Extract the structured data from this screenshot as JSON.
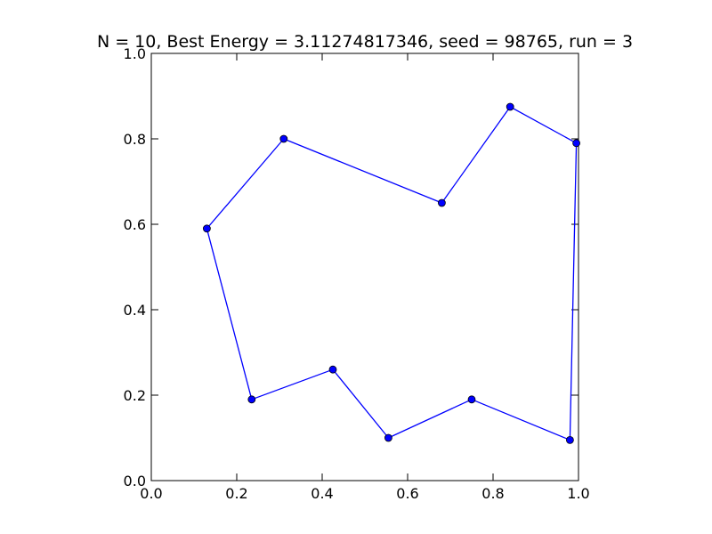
{
  "chart_data": {
    "type": "line",
    "title": "N = 10, Best Energy = 3.11274817346, seed = 98765, run = 3",
    "xlabel": "",
    "ylabel": "",
    "xlim": [
      0.0,
      1.0
    ],
    "ylim": [
      0.0,
      1.0
    ],
    "x_ticks": [
      "0.0",
      "0.2",
      "0.4",
      "0.6",
      "0.8",
      "1.0"
    ],
    "y_ticks": [
      "0.0",
      "0.2",
      "0.4",
      "0.6",
      "0.8",
      "1.0"
    ],
    "grid": false,
    "series": [
      {
        "color": "#0000ff",
        "marker": "circle",
        "closed": true,
        "points": [
          {
            "x": 0.13,
            "y": 0.59
          },
          {
            "x": 0.31,
            "y": 0.8
          },
          {
            "x": 0.68,
            "y": 0.65
          },
          {
            "x": 0.84,
            "y": 0.875
          },
          {
            "x": 0.995,
            "y": 0.79
          },
          {
            "x": 0.98,
            "y": 0.095
          },
          {
            "x": 0.75,
            "y": 0.19
          },
          {
            "x": 0.555,
            "y": 0.1
          },
          {
            "x": 0.425,
            "y": 0.26
          },
          {
            "x": 0.235,
            "y": 0.19
          }
        ]
      }
    ]
  }
}
